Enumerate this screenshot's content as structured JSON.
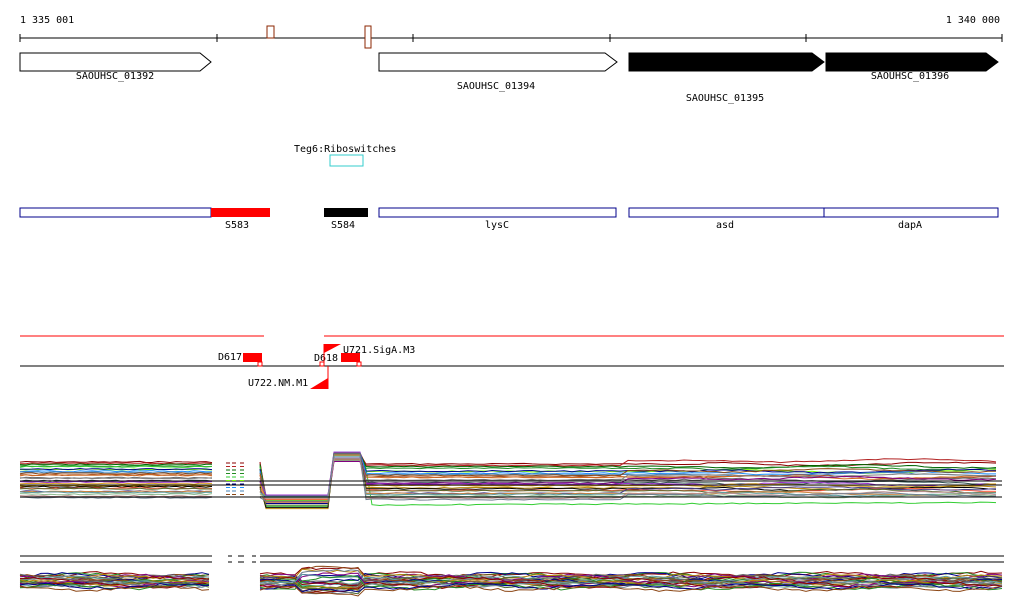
{
  "ruler": {
    "start_label": "1 335 001",
    "end_label": "1 340 000"
  },
  "colors": {
    "axis": "#000000",
    "peak": "#8b2500",
    "peak_fill": "#ffffff",
    "gene_outline": "#000000",
    "gene_open_fill": "#ffffff",
    "gene_solid_fill": "#000000",
    "riboswitch": "#33cccc",
    "annotation_outline": "#00008b",
    "srna_red": "#ff0000",
    "srna_black": "#000000",
    "track_red": "#ff0000",
    "track_black": "#000000",
    "marker_red": "#ff0000"
  },
  "genes": [
    {
      "id": "SAOUHSC_01392",
      "label": "SAOUHSC_01392",
      "fill": "open"
    },
    {
      "id": "SAOUHSC_01394",
      "label": "SAOUHSC_01394",
      "fill": "open"
    },
    {
      "id": "SAOUHSC_01395",
      "label": "SAOUHSC_01395",
      "fill": "solid"
    },
    {
      "id": "SAOUHSC_01396",
      "label": "SAOUHSC_01396",
      "fill": "solid"
    }
  ],
  "riboswitch": {
    "label": "Teg6:Riboswitches"
  },
  "annotations": [
    {
      "label": "",
      "kind": "outline"
    },
    {
      "label": "S583",
      "kind": "red"
    },
    {
      "label": "S584",
      "kind": "black"
    },
    {
      "label": "lysC",
      "kind": "outline"
    },
    {
      "label": "asd",
      "kind": "outline"
    },
    {
      "label": "dapA",
      "kind": "outline"
    }
  ],
  "markers": [
    {
      "label": "D617"
    },
    {
      "label": "D618"
    },
    {
      "label": "U721.SigA.M3"
    },
    {
      "label": "U722.NM.M1"
    }
  ],
  "expression_palette": [
    "#8b0000",
    "#b22222",
    "#006400",
    "#228b22",
    "#32cd32",
    "#7cfc00",
    "#00008b",
    "#1e90ff",
    "#4682b4",
    "#8b4513",
    "#a0522d",
    "#d2691e",
    "#696969",
    "#808080",
    "#2f4f4f",
    "#800080",
    "#9932cc",
    "#daa520",
    "#b8860b",
    "#000000",
    "#ff6347",
    "#556b2f",
    "#483d8b",
    "#cd853f",
    "#5f9ea0",
    "#8fbc8f",
    "#bc8f8f",
    "#708090",
    "#9acd32",
    "#20b2aa"
  ]
}
